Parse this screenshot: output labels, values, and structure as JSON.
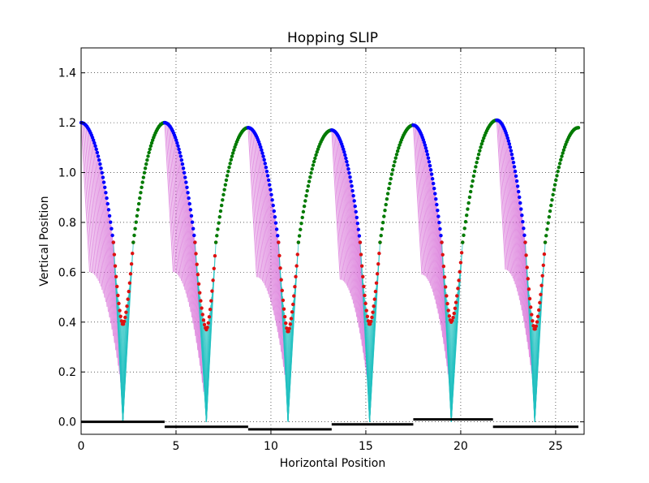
{
  "chart_data": {
    "type": "scatter",
    "title": "Hopping SLIP",
    "xlabel": "Horizontal Position",
    "ylabel": "Vertical Position",
    "xlim": [
      0,
      26.5
    ],
    "ylim": [
      -0.05,
      1.5
    ],
    "xticks": [
      "0",
      "5",
      "10",
      "15",
      "20",
      "25"
    ],
    "yticks": [
      "0.0",
      "0.2",
      "0.4",
      "0.6",
      "0.8",
      "1.0",
      "1.2",
      "1.4"
    ],
    "grid": true,
    "grid_style": "dotted",
    "colors": {
      "descent": "#0000ff",
      "ascent": "#007a00",
      "stance": "#dd1111",
      "leg_flight": "#cc44cc",
      "leg_stance": "#22c0c0",
      "ground": "#000000"
    },
    "hops": [
      {
        "apex_x": 0.0,
        "apex_y": 1.2,
        "touch_x": 1.7,
        "foot_x": 2.2,
        "min_y": 0.39,
        "lift_x": 2.75,
        "apex2_x": 4.4,
        "apex2_y": 1.2
      },
      {
        "apex_x": 4.4,
        "apex_y": 1.2,
        "touch_x": 6.0,
        "foot_x": 6.6,
        "min_y": 0.37,
        "lift_x": 7.1,
        "apex2_x": 8.8,
        "apex2_y": 1.18
      },
      {
        "apex_x": 8.8,
        "apex_y": 1.18,
        "touch_x": 10.4,
        "foot_x": 10.9,
        "min_y": 0.36,
        "lift_x": 11.45,
        "apex2_x": 13.2,
        "apex2_y": 1.17
      },
      {
        "apex_x": 13.2,
        "apex_y": 1.17,
        "touch_x": 14.7,
        "foot_x": 15.2,
        "min_y": 0.39,
        "lift_x": 15.75,
        "apex2_x": 17.5,
        "apex2_y": 1.19
      },
      {
        "apex_x": 17.5,
        "apex_y": 1.19,
        "touch_x": 19.0,
        "foot_x": 19.5,
        "min_y": 0.4,
        "lift_x": 20.1,
        "apex2_x": 21.9,
        "apex2_y": 1.21
      },
      {
        "apex_x": 21.9,
        "apex_y": 1.21,
        "touch_x": 23.4,
        "foot_x": 23.9,
        "min_y": 0.37,
        "lift_x": 24.45,
        "apex2_x": 26.2,
        "apex2_y": 1.18
      }
    ],
    "ground_segments": [
      {
        "x0": 0.0,
        "x1": 4.4,
        "y": 0.0
      },
      {
        "x0": 4.4,
        "x1": 8.8,
        "y": -0.02
      },
      {
        "x0": 8.8,
        "x1": 13.2,
        "y": -0.03
      },
      {
        "x0": 13.2,
        "x1": 17.5,
        "y": -0.01
      },
      {
        "x0": 17.5,
        "x1": 21.7,
        "y": 0.01
      },
      {
        "x0": 21.7,
        "x1": 26.2,
        "y": -0.02
      }
    ]
  }
}
